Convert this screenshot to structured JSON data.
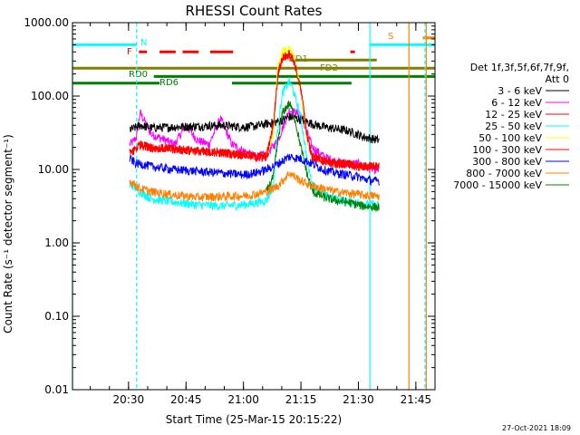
{
  "chart_data": {
    "type": "line",
    "title": "RHESSI Count Rates",
    "xlabel": "Start Time (25-Mar-15 20:15:22)",
    "ylabel": "Count Rate (s⁻¹ detector segment⁻¹)",
    "ylog": true,
    "ylim": [
      0.01,
      1000
    ],
    "xlim": [
      20.2561,
      21.8333
    ],
    "x_ticks": [
      20.5,
      20.75,
      21.0,
      21.25,
      21.5,
      21.75
    ],
    "x_tick_labels": [
      "20:30",
      "20:45",
      "21:00",
      "21:15",
      "21:30",
      "21:45"
    ],
    "y_ticks": [
      0.01,
      0.1,
      1,
      10,
      100,
      1000
    ],
    "y_tick_labels": [
      "0.01",
      "0.10",
      "1.00",
      "10.00",
      "100.00",
      "1000.00"
    ],
    "legend": {
      "header_line1": "Det 1f,3f,5f,6f,7f,9f,",
      "header_line2": "Att 0",
      "placement": "right"
    },
    "series": [
      {
        "name": "3 - 6 keV",
        "color": "#000000",
        "x": [
          20.505,
          20.52,
          20.535,
          20.55,
          20.6,
          20.7,
          20.8,
          20.9,
          21.0,
          21.05,
          21.1,
          21.15,
          21.2,
          21.25,
          21.3,
          21.35,
          21.4,
          21.45,
          21.5,
          21.52,
          21.57,
          21.59
        ],
        "y": [
          35,
          36,
          38,
          40,
          37,
          38,
          39,
          40,
          38,
          39,
          42,
          45,
          52,
          48,
          42,
          38,
          36,
          34,
          30,
          28,
          26,
          25
        ]
      },
      {
        "name": "6 - 12 keV",
        "color": "#ff00ff",
        "x": [
          20.505,
          20.52,
          20.535,
          20.55,
          20.6,
          20.65,
          20.7,
          20.75,
          20.8,
          20.85,
          20.9,
          20.95,
          21.0,
          21.05,
          21.1,
          21.15,
          21.2,
          21.25,
          21.3,
          21.35,
          21.4,
          21.45,
          21.5,
          21.52,
          21.57,
          21.59
        ],
        "y": [
          22,
          24,
          28,
          60,
          30,
          26,
          22,
          40,
          25,
          22,
          50,
          22,
          18,
          15,
          16,
          25,
          65,
          55,
          20,
          15,
          13,
          12,
          12,
          11,
          10,
          10
        ]
      },
      {
        "name": "12 - 25 keV",
        "color": "#ff0000",
        "x": [
          20.505,
          20.52,
          20.535,
          20.55,
          20.6,
          20.7,
          20.8,
          20.9,
          21.0,
          21.05,
          21.1,
          21.13,
          21.15,
          21.17,
          21.2,
          21.22,
          21.25,
          21.28,
          21.3,
          21.35,
          21.4,
          21.45,
          21.5,
          21.52,
          21.57,
          21.59
        ],
        "y": [
          17,
          18,
          20,
          22,
          20,
          19,
          18,
          17,
          16,
          15,
          15,
          40,
          200,
          330,
          380,
          300,
          120,
          25,
          15,
          13,
          12,
          12,
          11,
          11,
          11,
          11
        ]
      },
      {
        "name": "25 - 50 keV",
        "color": "#00ffff",
        "x": [
          20.505,
          20.52,
          20.535,
          20.55,
          20.6,
          20.7,
          20.8,
          20.9,
          21.0,
          21.05,
          21.1,
          21.13,
          21.15,
          21.17,
          21.2,
          21.22,
          21.25,
          21.28,
          21.3,
          21.35,
          21.4,
          21.45,
          21.5,
          21.52,
          21.57,
          21.59
        ],
        "y": [
          6,
          6,
          5.5,
          5,
          4,
          3.6,
          3.3,
          3.2,
          3.3,
          3.5,
          3.8,
          6,
          40,
          110,
          160,
          110,
          50,
          12,
          6,
          4.5,
          4,
          3.7,
          3.5,
          3.4,
          3.3,
          3.2
        ]
      },
      {
        "name": "50 - 100 keV",
        "color": "#ffff00",
        "x": [
          21.1,
          21.13,
          21.15,
          21.17,
          21.2,
          21.22,
          21.25,
          21.28
        ],
        "y": [
          16,
          30,
          250,
          400,
          430,
          330,
          120,
          20
        ]
      },
      {
        "name": "100 - 300 keV",
        "color": "#ff0000",
        "x": [
          20.505,
          20.52,
          20.535,
          20.55,
          20.6,
          20.7,
          20.8,
          20.9,
          21.0,
          21.05,
          21.1,
          21.13,
          21.15,
          21.17,
          21.2,
          21.22,
          21.25,
          21.28,
          21.3,
          21.35,
          21.4,
          21.45,
          21.5,
          21.52,
          21.57,
          21.59
        ],
        "y": [
          17,
          18,
          20,
          22,
          20,
          19,
          18,
          17,
          16,
          15,
          15,
          40,
          200,
          330,
          380,
          300,
          120,
          25,
          15,
          13,
          12,
          12,
          11,
          11,
          11,
          11
        ]
      },
      {
        "name": "300 - 800 keV",
        "color": "#0000ff",
        "x": [
          20.505,
          20.52,
          20.535,
          20.55,
          20.6,
          20.7,
          20.8,
          20.9,
          21.0,
          21.05,
          21.1,
          21.15,
          21.2,
          21.25,
          21.3,
          21.35,
          21.4,
          21.45,
          21.5,
          21.52,
          21.57,
          21.59
        ],
        "y": [
          14,
          13,
          12,
          12,
          11,
          10,
          9.5,
          9,
          8.5,
          9,
          10,
          12,
          15,
          14,
          12,
          10,
          9,
          8.5,
          8,
          7.5,
          7,
          7
        ]
      },
      {
        "name": "800 - 7000 keV",
        "color": "#ff8000",
        "x": [
          20.505,
          20.52,
          20.535,
          20.55,
          20.6,
          20.7,
          20.8,
          20.9,
          21.0,
          21.05,
          21.1,
          21.15,
          21.2,
          21.25,
          21.3,
          21.35,
          21.4,
          21.45,
          21.5,
          21.52,
          21.57,
          21.59
        ],
        "y": [
          7,
          6.5,
          6,
          5.5,
          5,
          4.5,
          4.2,
          4.3,
          4.4,
          4.6,
          5,
          6,
          9,
          7,
          6,
          5.5,
          5,
          4.8,
          4.6,
          4.5,
          4.4,
          4.3
        ]
      },
      {
        "name": "7000 - 15000 keV",
        "color": "#008000",
        "x": [
          21.1,
          21.13,
          21.15,
          21.17,
          21.2,
          21.22,
          21.25,
          21.28,
          21.3,
          21.35,
          21.4,
          21.45,
          21.5,
          21.52,
          21.57,
          21.59
        ],
        "y": [
          5,
          8,
          25,
          60,
          80,
          55,
          20,
          8,
          5,
          4.2,
          3.8,
          3.6,
          3.3,
          3.2,
          3.1,
          3.0
        ]
      }
    ],
    "annotations": [
      {
        "label": "N",
        "color": "#00ffff",
        "y": 500,
        "segments": [
          [
            20.2561,
            20.535
          ],
          [
            21.55,
            21.8333
          ]
        ]
      },
      {
        "label": "F",
        "color": "#ff0000",
        "y": 400,
        "segments": [
          [
            20.545,
            20.58
          ],
          [
            20.635,
            20.705
          ],
          [
            20.735,
            20.805
          ],
          [
            20.855,
            20.955
          ],
          [
            21.465,
            21.485
          ]
        ]
      },
      {
        "label": "S",
        "color": "#ff8000",
        "y": 620,
        "segments": [
          [
            21.78,
            21.8333
          ]
        ]
      },
      {
        "label": "FD1",
        "color": "#808000",
        "y": 310,
        "segments": [
          [
            21.2,
            21.58
          ]
        ]
      },
      {
        "label": "FD2",
        "color": "#808000",
        "y": 240,
        "segments": [
          [
            20.2561,
            21.8333
          ]
        ]
      },
      {
        "label": "RD0",
        "color": "#008000",
        "y": 185,
        "segments": [
          [
            20.61,
            21.8333
          ]
        ]
      },
      {
        "label": "RD6",
        "color": "#008000",
        "y": 150,
        "segments": [
          [
            20.2561,
            20.635
          ],
          [
            20.95,
            21.47
          ]
        ]
      }
    ],
    "vertical_markers": [
      {
        "x": 20.2561,
        "color": "#00ffff",
        "style": "solid"
      },
      {
        "x": 20.535,
        "color": "#00ffff",
        "style": "dashed"
      },
      {
        "x": 21.55,
        "color": "#00ffff",
        "style": "solid"
      },
      {
        "x": 21.72,
        "color": "#ff8000",
        "style": "solid"
      },
      {
        "x": 21.79,
        "color": "#00ffff",
        "style": "dashed"
      },
      {
        "x": 21.795,
        "color": "#ff8000",
        "style": "solid"
      }
    ],
    "timestamp": "27-Oct-2021 18:09"
  }
}
